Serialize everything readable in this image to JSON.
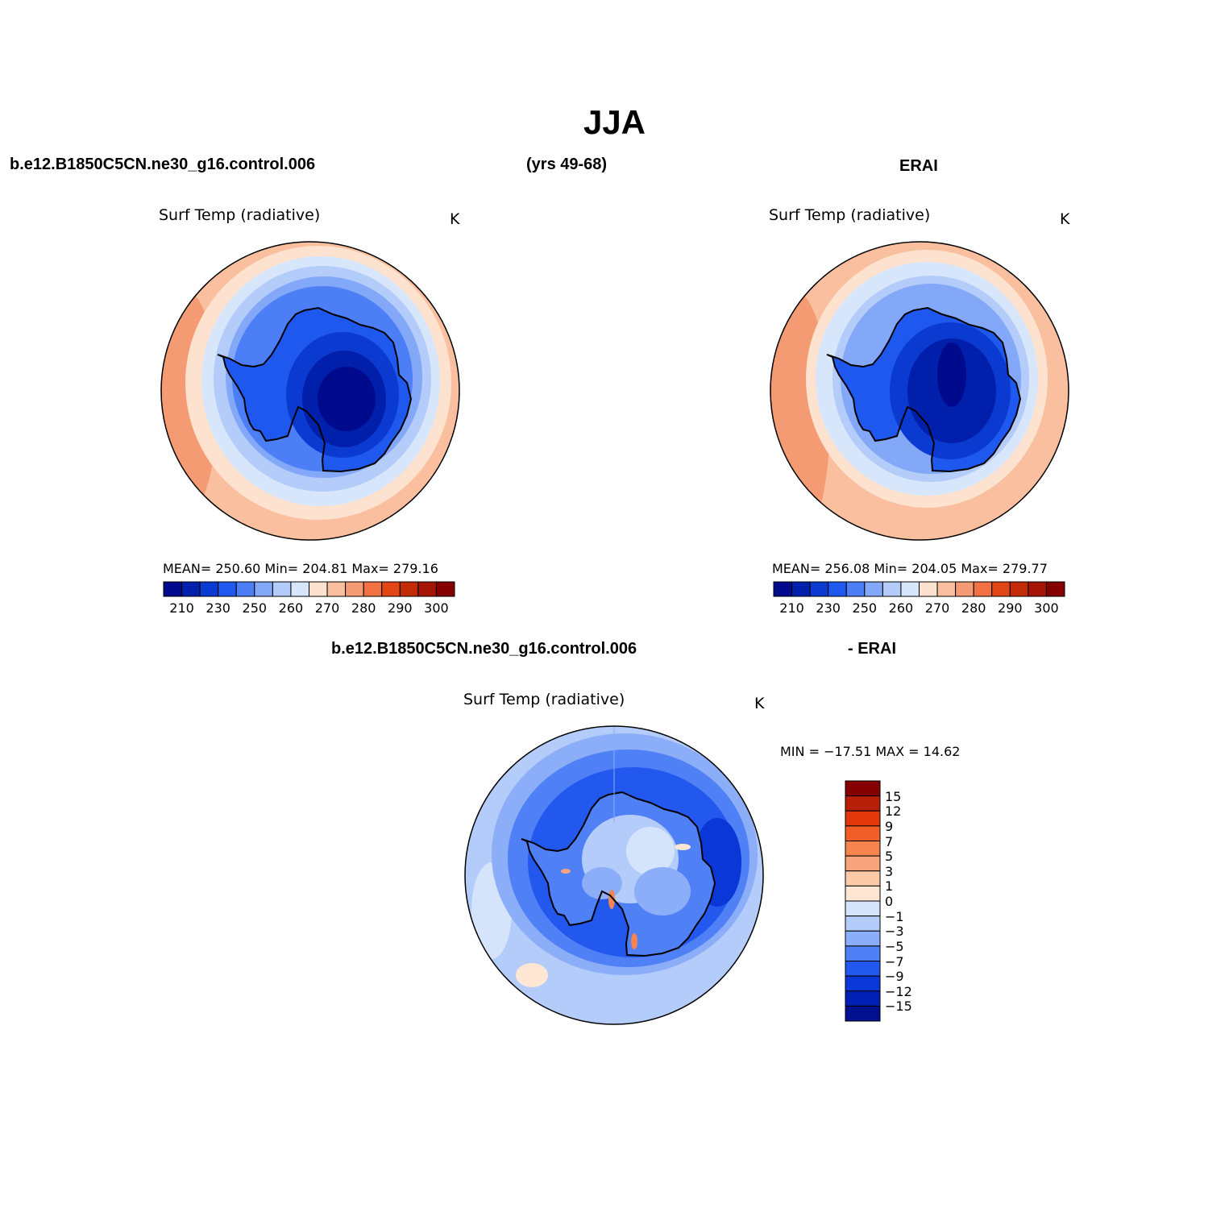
{
  "figure": {
    "title": "JJA",
    "case_name": "b.e12.B1850C5CN.ne30_g16.control.006",
    "years": "(yrs 49-68)",
    "obs_name": "ERAI",
    "diff_case_name": "b.e12.B1850C5CN.ne30_g16.control.006",
    "diff_obs_name": "- ERAI"
  },
  "panels": {
    "model": {
      "title": "Surf Temp (radiative)",
      "units": "K",
      "stats": "MEAN= 250.60   Min= 204.81   Max= 279.16",
      "mean": 250.6,
      "min": 204.81,
      "max": 279.16
    },
    "obs": {
      "title": "Surf Temp (radiative)",
      "units": "K",
      "stats": "MEAN= 256.08   Min= 204.05   Max= 279.77",
      "mean": 256.08,
      "min": 204.05,
      "max": 279.77
    },
    "diff": {
      "title": "Surf Temp (radiative)",
      "units": "K",
      "stats": "MIN = −17.51  MAX =   14.62",
      "min": -17.51,
      "max": 14.62
    }
  },
  "abs_colorbar": {
    "colors": [
      "#000a8c",
      "#001fab",
      "#0a3ad0",
      "#1e58ef",
      "#4c7ef6",
      "#84a8f8",
      "#b4ccf9",
      "#d8e6fb",
      "#fde2cf",
      "#f9bf9e",
      "#f59b73",
      "#f27144",
      "#e24516",
      "#c22a08",
      "#a51405",
      "#850000"
    ],
    "labels": [
      "210",
      "230",
      "250",
      "260",
      "270",
      "280",
      "290",
      "300"
    ]
  },
  "diff_colorbar": {
    "colors": [
      "#850000",
      "#b71f08",
      "#e2380b",
      "#f25e28",
      "#f5844f",
      "#f8a47c",
      "#fbcba9",
      "#fde6d4",
      "#d6e4fb",
      "#b4ccf9",
      "#8cadf7",
      "#4f80f5",
      "#2358ef",
      "#0a37d8",
      "#0020b5",
      "#00108f"
    ],
    "labels": [
      "15",
      "12",
      "9",
      "7",
      "5",
      "3",
      "1",
      "0",
      "−1",
      "−3",
      "−5",
      "−7",
      "−9",
      "−12",
      "−15"
    ]
  }
}
